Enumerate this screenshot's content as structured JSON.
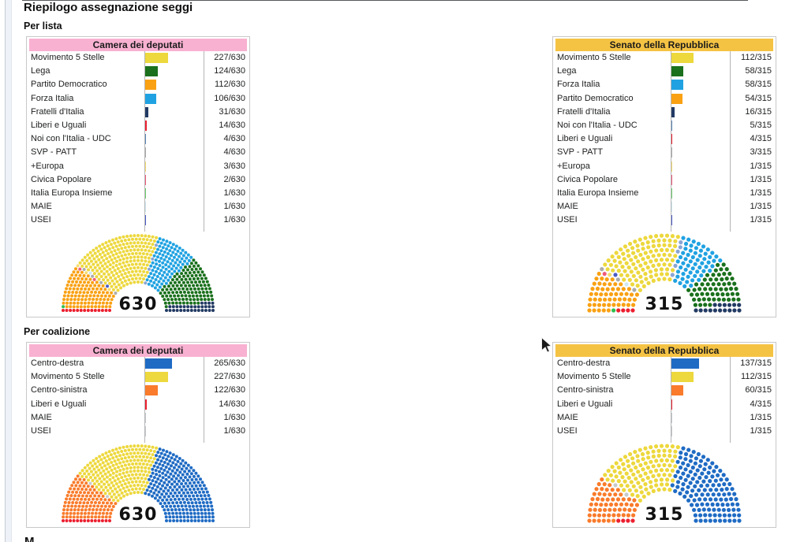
{
  "page": {
    "title": "Riepilogo assegnazione seggi",
    "sections": [
      "Per lista",
      "Per coalizione"
    ],
    "partial_next_heading": "M"
  },
  "brand_colors": {
    "camera_header": "#F8B1D1",
    "senato_header": "#F5C344"
  },
  "chart_data": [
    {
      "type": "bar",
      "section": "Per lista",
      "title": "Camera dei deputati",
      "header_color": "#F8B1D1",
      "total": 630,
      "center_label": "630",
      "rows": [
        {
          "label": "Movimento 5 Stelle",
          "value": 227,
          "display": "227/630",
          "color": "#EDD83D"
        },
        {
          "label": "Lega",
          "value": 124,
          "display": "124/630",
          "color": "#1A701C"
        },
        {
          "label": "Partito Democratico",
          "value": 112,
          "display": "112/630",
          "color": "#F9A113"
        },
        {
          "label": "Forza Italia",
          "value": 106,
          "display": "106/630",
          "color": "#20A2E2"
        },
        {
          "label": "Fratelli d'Italia",
          "value": 31,
          "display": "31/630",
          "color": "#223A63"
        },
        {
          "label": "Liberi e Uguali",
          "value": 14,
          "display": "14/630",
          "color": "#EC1F2F"
        },
        {
          "label": "Noi con l'Italia - UDC",
          "value": 4,
          "display": "4/630",
          "color": "#5C85B8"
        },
        {
          "label": "SVP - PATT",
          "value": 4,
          "display": "4/630",
          "color": "#ABABAB"
        },
        {
          "label": "+Europa",
          "value": 3,
          "display": "3/630",
          "color": "#F6DC72"
        },
        {
          "label": "Civica Popolare",
          "value": 2,
          "display": "2/630",
          "color": "#EF5B7B"
        },
        {
          "label": "Italia Europa Insieme",
          "value": 1,
          "display": "1/630",
          "color": "#6FCF6F"
        },
        {
          "label": "MAIE",
          "value": 1,
          "display": "1/630",
          "color": "#CFE8F2"
        },
        {
          "label": "USEI",
          "value": 1,
          "display": "1/630",
          "color": "#4A5BC8"
        }
      ],
      "hemicycle": {
        "rows": 14,
        "parties": [
          {
            "name": "Liberi e Uguali",
            "seats": 14,
            "color": "#EC1F2F"
          },
          {
            "name": "Italia Europa Insieme",
            "seats": 1,
            "color": "#2FBE4F"
          },
          {
            "name": "Partito Democratico",
            "seats": 112,
            "color": "#F9A113"
          },
          {
            "name": "Civica Popolare",
            "seats": 2,
            "color": "#EF5B7B"
          },
          {
            "name": "+Europa",
            "seats": 3,
            "color": "#F6DC72"
          },
          {
            "name": "SVP - PATT",
            "seats": 4,
            "color": "#ABABAB"
          },
          {
            "name": "MAIE",
            "seats": 1,
            "color": "#CFE8F2"
          },
          {
            "name": "USEI",
            "seats": 1,
            "color": "#4A5BC8"
          },
          {
            "name": "Movimento 5 Stelle",
            "seats": 227,
            "color": "#EDD83D"
          },
          {
            "name": "Noi con l'Italia - UDC",
            "seats": 4,
            "color": "#8AA5D3"
          },
          {
            "name": "Forza Italia",
            "seats": 106,
            "color": "#20A2E2"
          },
          {
            "name": "Lega",
            "seats": 124,
            "color": "#1A701C"
          },
          {
            "name": "Fratelli d'Italia",
            "seats": 31,
            "color": "#223A63"
          }
        ]
      }
    },
    {
      "type": "bar",
      "section": "Per lista",
      "title": "Senato della Repubblica",
      "header_color": "#F5C344",
      "total": 315,
      "center_label": "315",
      "rows": [
        {
          "label": "Movimento 5 Stelle",
          "value": 112,
          "display": "112/315",
          "color": "#EDD83D"
        },
        {
          "label": "Lega",
          "value": 58,
          "display": "58/315",
          "color": "#1A701C"
        },
        {
          "label": "Forza Italia",
          "value": 58,
          "display": "58/315",
          "color": "#20A2E2"
        },
        {
          "label": "Partito Democratico",
          "value": 54,
          "display": "54/315",
          "color": "#F9A113"
        },
        {
          "label": "Fratelli d'Italia",
          "value": 16,
          "display": "16/315",
          "color": "#223A63"
        },
        {
          "label": "Noi con l'Italia - UDC",
          "value": 5,
          "display": "5/315",
          "color": "#5C85B8"
        },
        {
          "label": "Liberi e Uguali",
          "value": 4,
          "display": "4/315",
          "color": "#EC1F2F"
        },
        {
          "label": "SVP - PATT",
          "value": 3,
          "display": "3/315",
          "color": "#ABABAB"
        },
        {
          "label": "+Europa",
          "value": 1,
          "display": "1/315",
          "color": "#F6DC72"
        },
        {
          "label": "Civica Popolare",
          "value": 1,
          "display": "1/315",
          "color": "#EF5B7B"
        },
        {
          "label": "Italia Europa Insieme",
          "value": 1,
          "display": "1/315",
          "color": "#6FCF6F"
        },
        {
          "label": "MAIE",
          "value": 1,
          "display": "1/315",
          "color": "#CFE8F2"
        },
        {
          "label": "USEI",
          "value": 1,
          "display": "1/315",
          "color": "#4A5BC8"
        }
      ],
      "hemicycle": {
        "rows": 10,
        "parties": [
          {
            "name": "Liberi e Uguali",
            "seats": 4,
            "color": "#EC1F2F"
          },
          {
            "name": "Italia Europa Insieme",
            "seats": 1,
            "color": "#2FBE4F"
          },
          {
            "name": "Partito Democratico",
            "seats": 54,
            "color": "#F9A113"
          },
          {
            "name": "Civica Popolare",
            "seats": 1,
            "color": "#EF5B7B"
          },
          {
            "name": "+Europa",
            "seats": 1,
            "color": "#F6DC72"
          },
          {
            "name": "SVP - PATT",
            "seats": 3,
            "color": "#ABABAB"
          },
          {
            "name": "MAIE",
            "seats": 1,
            "color": "#CFE8F2"
          },
          {
            "name": "USEI",
            "seats": 1,
            "color": "#4A5BC8"
          },
          {
            "name": "Movimento 5 Stelle",
            "seats": 112,
            "color": "#EDD83D"
          },
          {
            "name": "Noi con l'Italia - UDC",
            "seats": 5,
            "color": "#8AA5D3"
          },
          {
            "name": "Forza Italia",
            "seats": 58,
            "color": "#20A2E2"
          },
          {
            "name": "Lega",
            "seats": 58,
            "color": "#1A701C"
          },
          {
            "name": "Fratelli d'Italia",
            "seats": 16,
            "color": "#223A63"
          }
        ]
      }
    },
    {
      "type": "bar",
      "section": "Per coalizione",
      "title": "Camera dei deputati",
      "header_color": "#F8B1D1",
      "total": 630,
      "center_label": "630",
      "rows": [
        {
          "label": "Centro-destra",
          "value": 265,
          "display": "265/630",
          "color": "#1F6BC4"
        },
        {
          "label": "Movimento 5 Stelle",
          "value": 227,
          "display": "227/630",
          "color": "#EDD83D"
        },
        {
          "label": "Centro-sinistra",
          "value": 122,
          "display": "122/630",
          "color": "#F97B2B"
        },
        {
          "label": "Liberi e Uguali",
          "value": 14,
          "display": "14/630",
          "color": "#EC1F2F"
        },
        {
          "label": "MAIE",
          "value": 1,
          "display": "1/630",
          "color": "#C6CACD"
        },
        {
          "label": "USEI",
          "value": 1,
          "display": "1/630",
          "color": "#C6CACD"
        }
      ],
      "hemicycle": {
        "rows": 14,
        "parties": [
          {
            "name": "Liberi e Uguali",
            "seats": 14,
            "color": "#EC1F2F"
          },
          {
            "name": "Centro-sinistra",
            "seats": 122,
            "color": "#F97B2B"
          },
          {
            "name": "MAIE",
            "seats": 1,
            "color": "#C6CACD"
          },
          {
            "name": "USEI",
            "seats": 1,
            "color": "#C6CACD"
          },
          {
            "name": "Movimento 5 Stelle",
            "seats": 227,
            "color": "#EDD83D"
          },
          {
            "name": "Centro-destra",
            "seats": 265,
            "color": "#1F6BC4"
          }
        ]
      }
    },
    {
      "type": "bar",
      "section": "Per coalizione",
      "title": "Senato della Repubblica",
      "header_color": "#F5C344",
      "total": 315,
      "center_label": "315",
      "rows": [
        {
          "label": "Centro-destra",
          "value": 137,
          "display": "137/315",
          "color": "#1F6BC4"
        },
        {
          "label": "Movimento 5 Stelle",
          "value": 112,
          "display": "112/315",
          "color": "#EDD83D"
        },
        {
          "label": "Centro-sinistra",
          "value": 60,
          "display": "60/315",
          "color": "#F97B2B"
        },
        {
          "label": "Liberi e Uguali",
          "value": 4,
          "display": "4/315",
          "color": "#EC1F2F"
        },
        {
          "label": "MAIE",
          "value": 1,
          "display": "1/315",
          "color": "#C6CACD"
        },
        {
          "label": "USEI",
          "value": 1,
          "display": "1/315",
          "color": "#C6CACD"
        }
      ],
      "hemicycle": {
        "rows": 10,
        "parties": [
          {
            "name": "Liberi e Uguali",
            "seats": 4,
            "color": "#EC1F2F"
          },
          {
            "name": "Centro-sinistra",
            "seats": 60,
            "color": "#F97B2B"
          },
          {
            "name": "MAIE",
            "seats": 1,
            "color": "#C6CACD"
          },
          {
            "name": "USEI",
            "seats": 1,
            "color": "#C6CACD"
          },
          {
            "name": "Movimento 5 Stelle",
            "seats": 112,
            "color": "#EDD83D"
          },
          {
            "name": "Centro-destra",
            "seats": 137,
            "color": "#1F6BC4"
          }
        ]
      }
    }
  ]
}
